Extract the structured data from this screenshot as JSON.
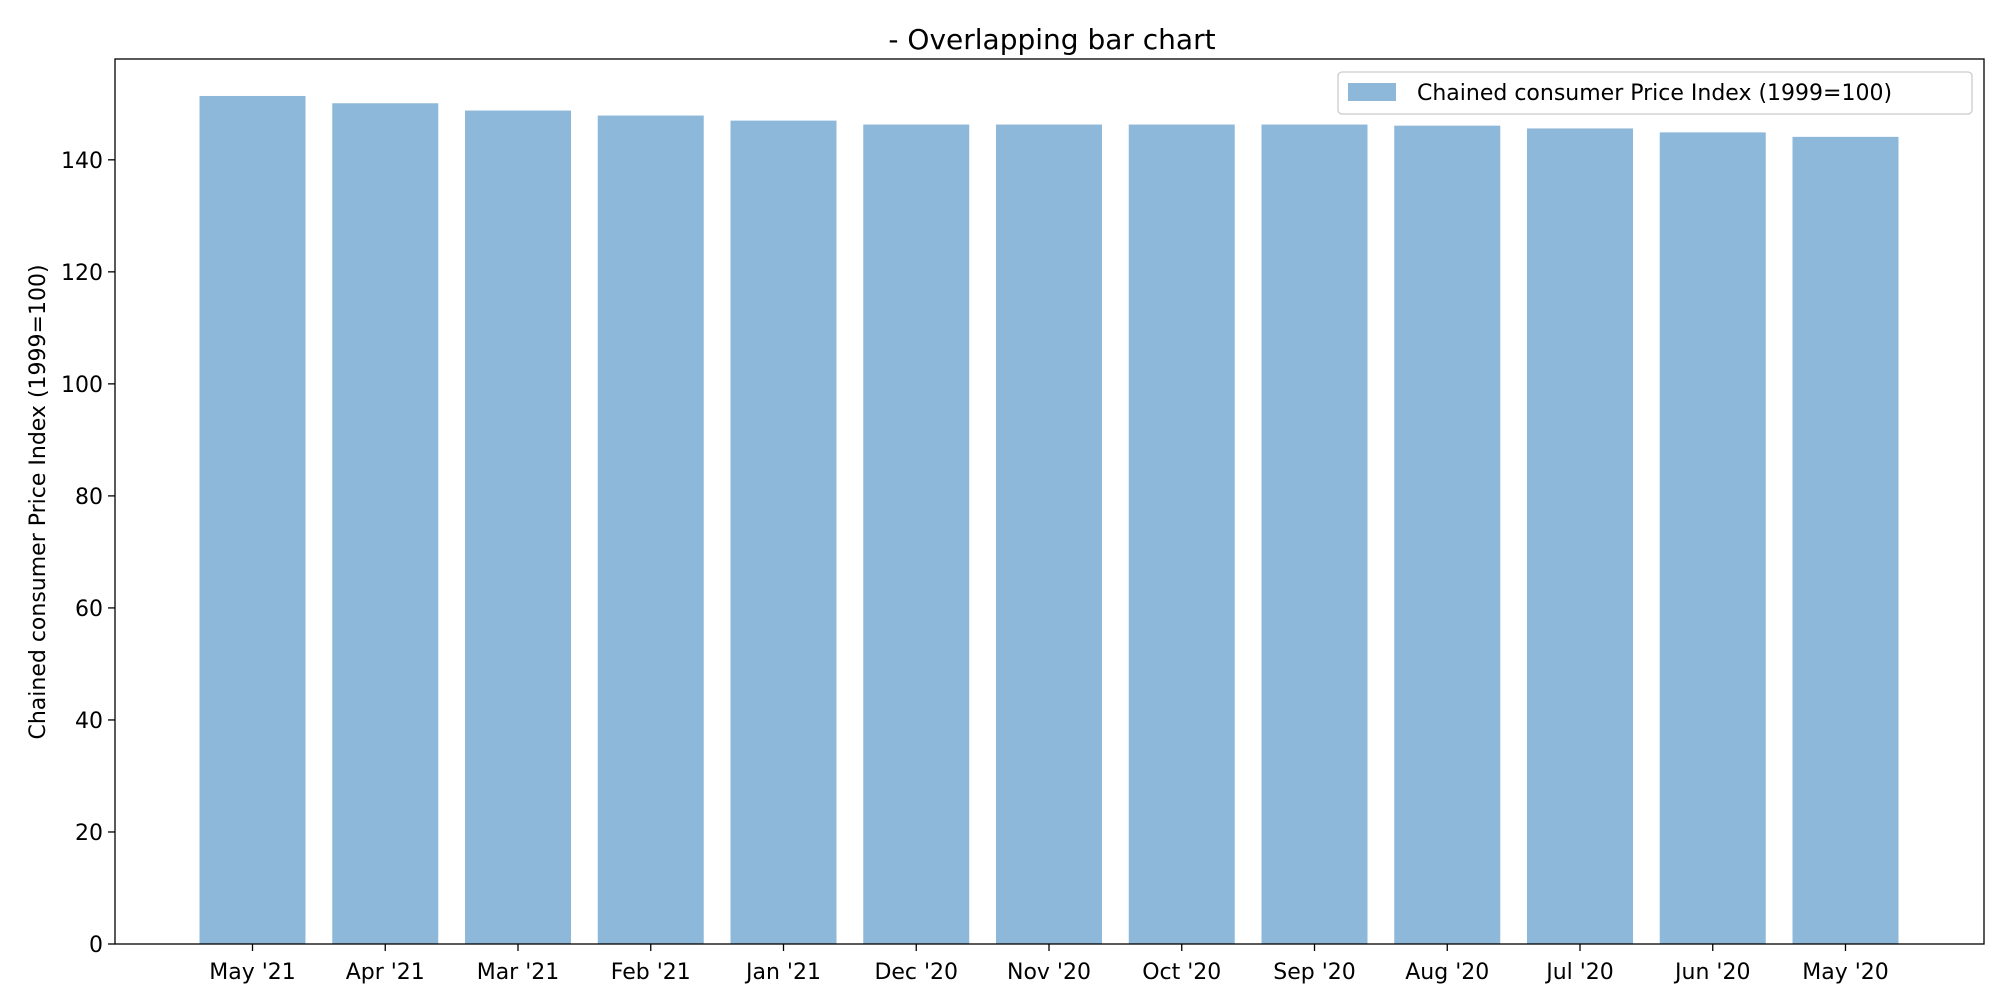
{
  "chart_data": {
    "type": "bar",
    "title": "- Overlapping bar chart",
    "xlabel": "",
    "ylabel": "Chained consumer Price Index (1999=100)",
    "ylim": [
      0,
      158
    ],
    "yticks": [
      0,
      20,
      40,
      60,
      80,
      100,
      120,
      140
    ],
    "grid": false,
    "legend_position": "top-right",
    "categories": [
      "May '21",
      "Apr '21",
      "Mar '21",
      "Feb '21",
      "Jan '21",
      "Dec '20",
      "Nov '20",
      "Oct '20",
      "Sep '20",
      "Aug '20",
      "Jul '20",
      "Jun '20",
      "May '20"
    ],
    "series": [
      {
        "name": "Chained consumer Price Index (1999=100)",
        "color": "#8eb8d9",
        "values": [
          151.4,
          150.1,
          148.8,
          147.9,
          147.0,
          146.3,
          146.3,
          146.3,
          146.3,
          146.1,
          145.6,
          144.9,
          144.1
        ]
      }
    ]
  }
}
